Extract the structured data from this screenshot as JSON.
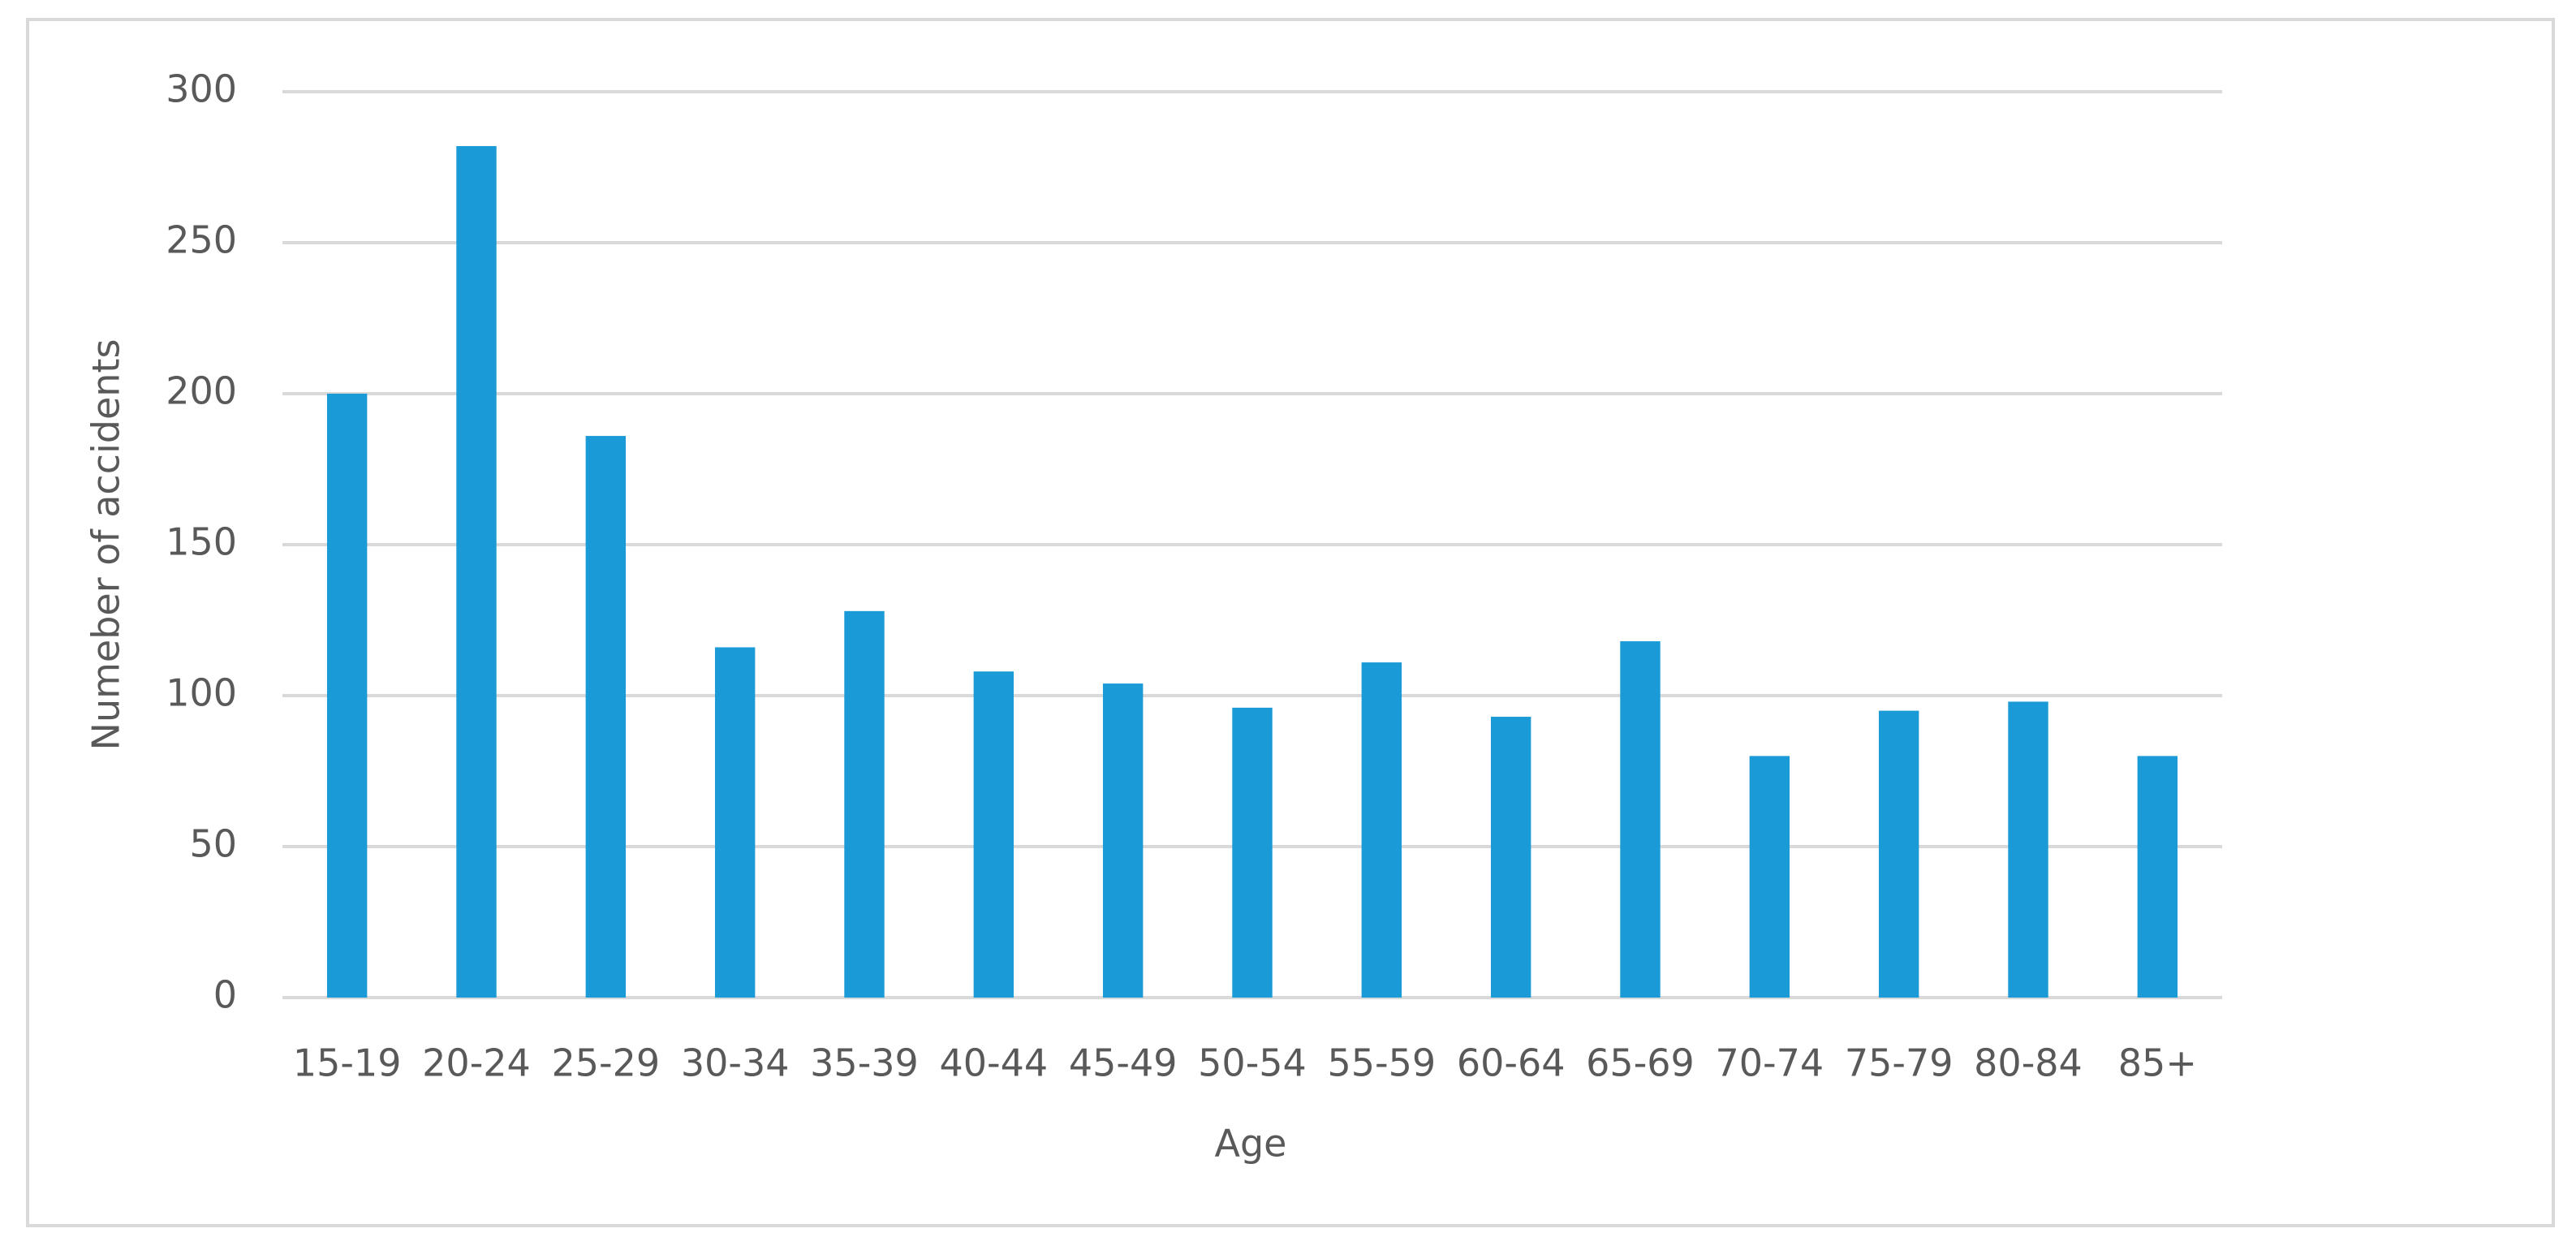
{
  "chart_data": {
    "type": "bar",
    "x_label": "Age",
    "y_label": "Numeber of accidents",
    "categories": [
      "15-19",
      "20-24",
      "25-29",
      "30-34",
      "35-39",
      "40-44",
      "45-49",
      "50-54",
      "55-59",
      "60-64",
      "65-69",
      "70-74",
      "75-79",
      "80-84",
      "85+"
    ],
    "values": [
      200,
      282,
      186,
      116,
      128,
      108,
      104,
      96,
      111,
      93,
      118,
      80,
      95,
      98,
      80
    ],
    "color": "#1a9bd7",
    "ylim": [
      0,
      300
    ],
    "yticks": [
      0,
      50,
      100,
      150,
      200,
      250,
      300
    ],
    "grid": true
  }
}
